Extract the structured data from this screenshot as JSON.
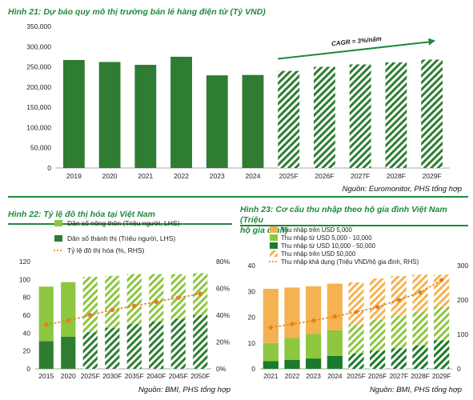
{
  "colors": {
    "title_green": "#1e8a3c",
    "bar_dark_green": "#2e7d32",
    "bar_light_green": "#8dc63f",
    "bar_orange": "#f4b350",
    "bar_darkest_green": "#1b7a2c",
    "line_orange": "#e67e22"
  },
  "chart_data": [
    {
      "type": "bar",
      "title": "Hình 21: Dự báo quy mô thị trường bán lẻ hàng điện tử (Tỷ VND)",
      "source": "Nguồn: Euromonitor, PHS tổng hợp",
      "categories": [
        "2019",
        "2020",
        "2021",
        "2022",
        "2023",
        "2024",
        "2025F",
        "2026F",
        "2027F",
        "2028F",
        "2029F"
      ],
      "values": [
        267000,
        262000,
        255000,
        275000,
        229000,
        230000,
        240000,
        250000,
        256000,
        261000,
        268000
      ],
      "forecast_from_index": 6,
      "ylim": [
        0,
        350000
      ],
      "yticks": [
        "0",
        "50,000",
        "100,000",
        "150,000",
        "200,000",
        "250,000",
        "300,000",
        "350,000"
      ],
      "annotation": "CAGR = 3%/năm"
    },
    {
      "type": "bar",
      "title": "Hình 22: Tỷ lệ đô thị hóa tại Việt Nam",
      "source": "Nguồn: BMI, PHS tổng hợp",
      "categories": [
        "2015",
        "2020",
        "2025F",
        "2030F",
        "2035F",
        "2040F",
        "2045F",
        "2050F"
      ],
      "forecast_from_index": 2,
      "series": [
        {
          "name": "Dân số nông thôn (Triệu người, LHS)",
          "values": [
            61,
            61,
            62,
            58,
            56,
            53,
            50,
            47
          ]
        },
        {
          "name": "Dân số thành thị (Triệu người, LHS)",
          "values": [
            31,
            36,
            41,
            46,
            50,
            53,
            56,
            60
          ]
        },
        {
          "name": "Tỷ lệ đô thị hóa (%, RHS)",
          "values": [
            33,
            36,
            40,
            44,
            47,
            50,
            53,
            56
          ]
        }
      ],
      "ylim_left": [
        0,
        120
      ],
      "ylim_right": [
        0,
        80
      ],
      "yticks_left": [
        "0",
        "20",
        "40",
        "60",
        "80",
        "100",
        "120"
      ],
      "yticks_right": [
        "0%",
        "20%",
        "40%",
        "60%",
        "80%"
      ]
    },
    {
      "type": "bar",
      "title": "Hình 23: Cơ cấu thu nhập theo hộ gia đình Việt Nam (Triệu hộ gia đình)",
      "title_lines": [
        "Hình 23: Cơ cấu thu nhập theo hộ gia đình Việt Nam (Triệu",
        "hộ gia đình)"
      ],
      "source": "Nguồn: BMI, PHS tổng hợp",
      "categories": [
        "2021",
        "2022",
        "2023",
        "2024",
        "2025F",
        "2026F",
        "2027F",
        "2028F",
        "2029F"
      ],
      "forecast_from_index": 4,
      "series": [
        {
          "name": "Thu nhập trên USD 50,000",
          "values": [
            0,
            0,
            0,
            0,
            0,
            0,
            0,
            0,
            0
          ]
        },
        {
          "name": "Thu nhập từ USD 10,000 - 50,000",
          "values": [
            3,
            3.5,
            4,
            5,
            6,
            7,
            8,
            9,
            11
          ]
        },
        {
          "name": "Thu nhập từ USD 5,000 - 10,000",
          "values": [
            7,
            8.5,
            9.5,
            10,
            11,
            12,
            12.5,
            13,
            13
          ]
        },
        {
          "name": "Thu nhập trên USD 5,000",
          "values": [
            21,
            19.5,
            18.5,
            18,
            16.5,
            16,
            15.5,
            14.5,
            12.5
          ]
        },
        {
          "name": "Thu nhập khả dụng (Triệu VND/hộ gia đình, RHS)",
          "values": [
            120,
            130,
            140,
            152,
            165,
            180,
            200,
            222,
            258
          ]
        }
      ],
      "legend_order": [
        "Thu nhập trên USD 5,000",
        "Thu nhập từ USD 5,000 - 10,000",
        "Thu nhập từ USD 10,000 - 50,000",
        "Thu nhập trên USD 50,000",
        "Thu nhập khả dụng (Triệu VND/hộ gia đình, RHS)"
      ],
      "ylim_left": [
        0,
        40
      ],
      "ylim_right": [
        0,
        300
      ],
      "yticks_left": [
        "0",
        "10",
        "20",
        "30",
        "40"
      ],
      "yticks_right": [
        "0",
        "100",
        "200",
        "300"
      ]
    }
  ]
}
